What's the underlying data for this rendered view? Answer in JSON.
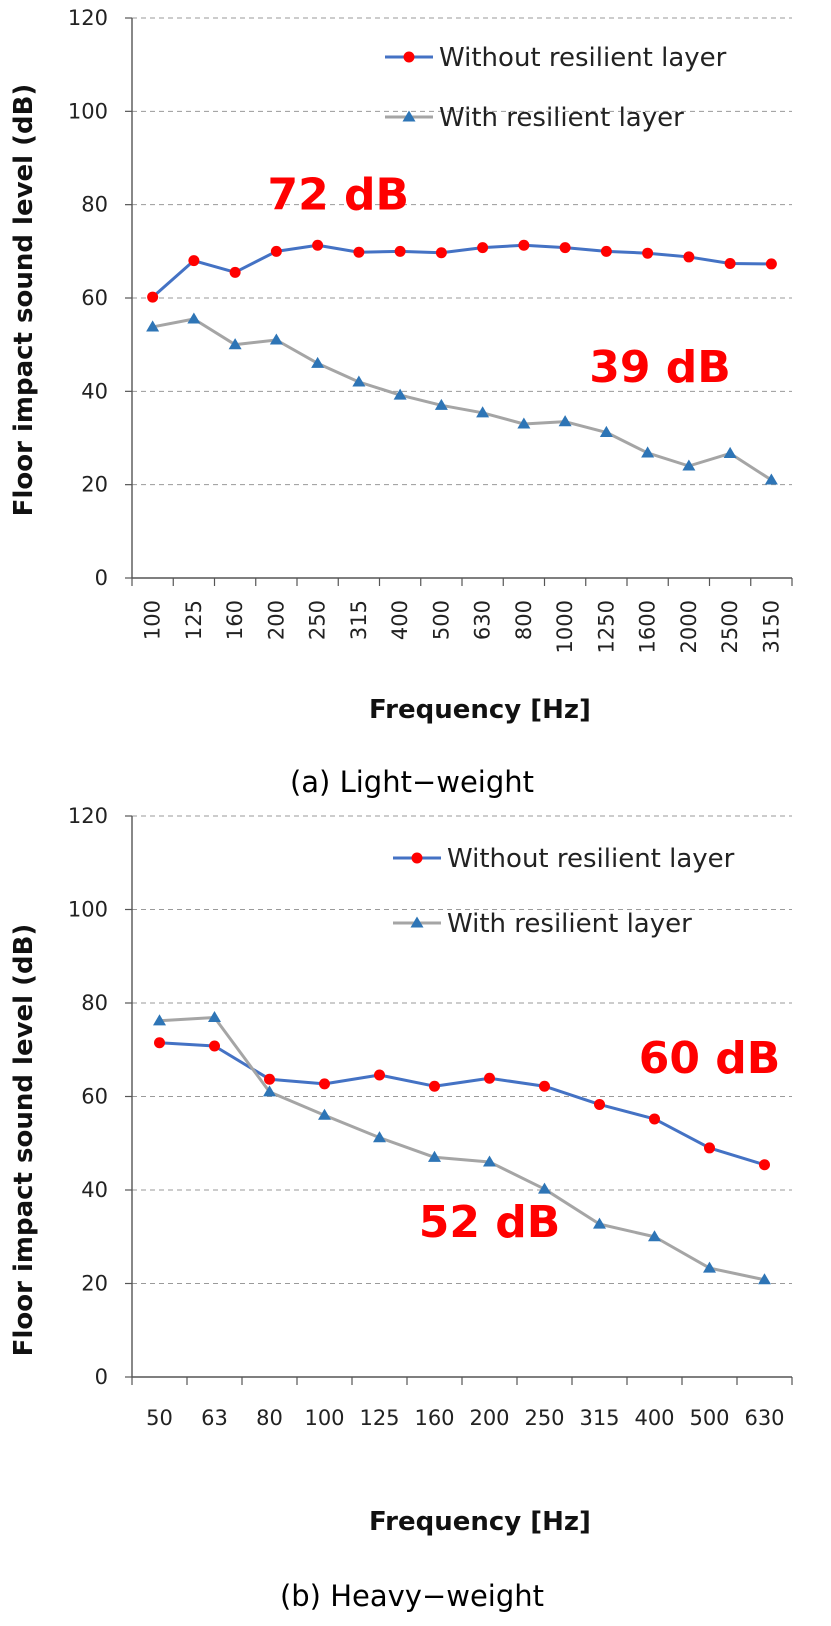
{
  "chart_data": [
    {
      "type": "line",
      "caption": "(a) Light−weight",
      "xlabel": "Frequency [Hz]",
      "ylabel": "Floor impact sound level (dB)",
      "ylim": [
        0,
        120
      ],
      "yticks": [
        0,
        20,
        40,
        60,
        80,
        100,
        120
      ],
      "grid": true,
      "legend_position": "top-right",
      "categories": [
        "100",
        "125",
        "160",
        "200",
        "250",
        "315",
        "400",
        "500",
        "630",
        "800",
        "1000",
        "1250",
        "1600",
        "2000",
        "2500",
        "3150"
      ],
      "series": [
        {
          "name": "Without resilient layer",
          "color": "#4472c4",
          "marker_color": "#ff0000",
          "marker": "circle",
          "values": [
            60.2,
            68,
            65.5,
            70,
            71.3,
            69.8,
            70,
            69.7,
            70.8,
            71.3,
            70.8,
            70,
            69.6,
            68.8,
            67.4,
            67.3
          ]
        },
        {
          "name": "With resilient layer",
          "color": "#a5a5a5",
          "marker_color": "#2e75b6",
          "marker": "triangle",
          "values": [
            53.8,
            55.5,
            50,
            51,
            46,
            42,
            39.2,
            37,
            35.4,
            33,
            33.5,
            31.2,
            26.8,
            24,
            26.7,
            21
          ]
        }
      ],
      "annotations": [
        {
          "text": "72 dB",
          "x_index": 4.5,
          "y": 79
        },
        {
          "text": "39 dB",
          "x_index": 12.3,
          "y": 42
        }
      ]
    },
    {
      "type": "line",
      "caption": "(b) Heavy−weight",
      "xlabel": "Frequency [Hz]",
      "ylabel": "Floor impact sound level (dB)",
      "ylim": [
        0,
        120
      ],
      "yticks": [
        0,
        20,
        40,
        60,
        80,
        100,
        120
      ],
      "grid": true,
      "legend_position": "top-right",
      "categories": [
        "50",
        "63",
        "80",
        "100",
        "125",
        "160",
        "200",
        "250",
        "315",
        "400",
        "500",
        "630"
      ],
      "series": [
        {
          "name": "Without resilient layer",
          "color": "#4472c4",
          "marker_color": "#ff0000",
          "marker": "circle",
          "values": [
            71.5,
            70.8,
            63.7,
            62.7,
            64.6,
            62.2,
            63.9,
            62.2,
            58.3,
            55.2,
            49,
            45.4
          ]
        },
        {
          "name": "With resilient layer",
          "color": "#a5a5a5",
          "marker_color": "#2e75b6",
          "marker": "triangle",
          "values": [
            76.2,
            76.9,
            61,
            56,
            51.2,
            47,
            46,
            40.2,
            32.7,
            30,
            23.3,
            20.8
          ]
        }
      ],
      "annotations": [
        {
          "text": "60 dB",
          "x_index": 10,
          "y": 65
        },
        {
          "text": "52 dB",
          "x_index": 6,
          "y": 30
        }
      ]
    }
  ]
}
